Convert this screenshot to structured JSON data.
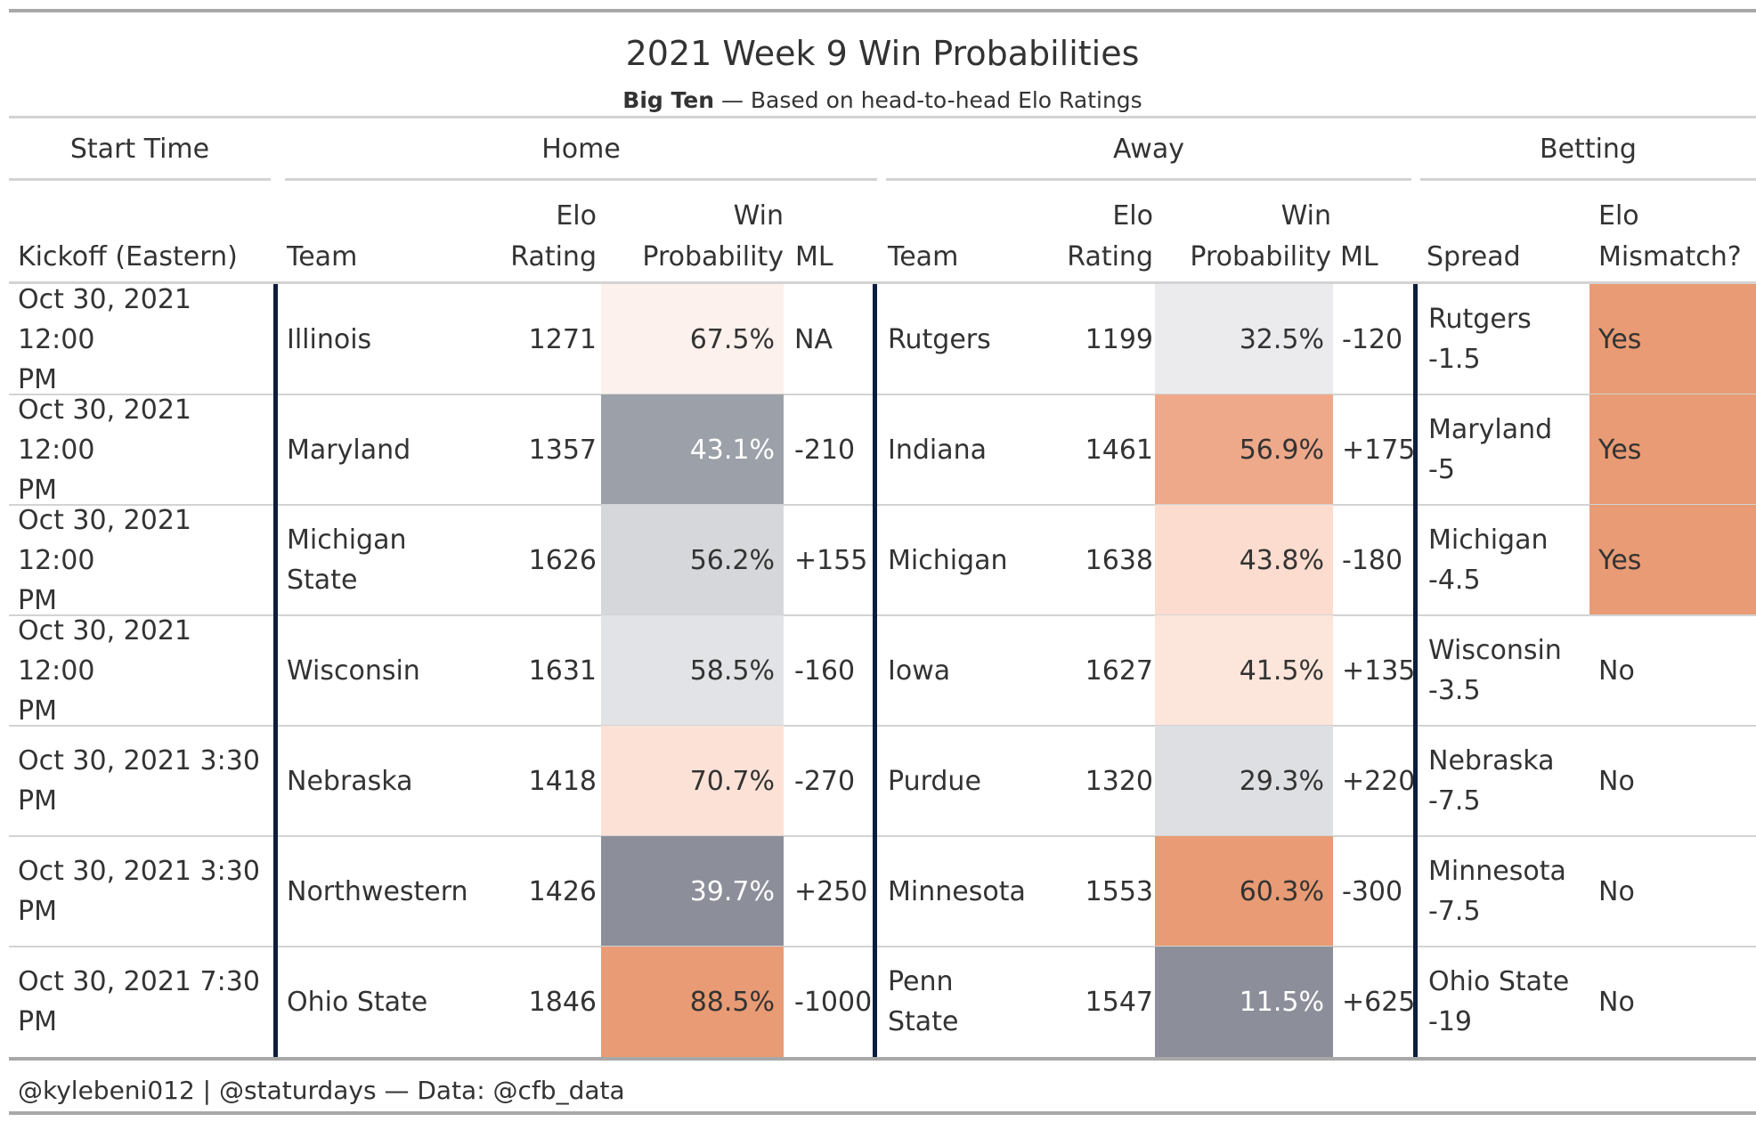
{
  "title": "2021 Week 9 Win Probabilities",
  "subtitle": {
    "bold": "Big Ten",
    "rest": " — Based on head-to-head Elo Ratings"
  },
  "spanners": {
    "start_time": "Start Time",
    "home": "Home",
    "away": "Away",
    "betting": "Betting"
  },
  "columns": {
    "kickoff": "Kickoff (Eastern)",
    "home_team": "Team",
    "home_elo": [
      "Elo",
      "Rating"
    ],
    "home_wp": [
      "Win",
      "Probability"
    ],
    "home_ml": "ML",
    "away_team": "Team",
    "away_elo": [
      "Elo",
      "Rating"
    ],
    "away_wp": [
      "Win",
      "Probability"
    ],
    "away_ml": "ML",
    "spread": "Spread",
    "mismatch": [
      "Elo",
      "Mismatch?"
    ]
  },
  "colors": {
    "cool_dark": "#8c8f99",
    "warm_dark": "#e89b74",
    "divider": "#0d1d3d",
    "mismatch_yes": "#e89b74"
  },
  "chart_data": {
    "type": "table",
    "rows": [
      {
        "kickoff": [
          "Oct 30, 2021 12:00",
          "PM"
        ],
        "home_team": [
          "Illinois"
        ],
        "home_elo": "1271",
        "home_wp": "67.5%",
        "home_ml": "NA",
        "away_team": "Rutgers",
        "away_elo": "1199",
        "away_wp": "32.5%",
        "away_ml": "-120",
        "spread": [
          "Rutgers",
          "-1.5"
        ],
        "mismatch": "Yes",
        "home_bg": "#fdf1ed",
        "home_fg": "#333333",
        "away_bg": "#ebebed",
        "away_fg": "#333333"
      },
      {
        "kickoff": [
          "Oct 30, 2021 12:00",
          "PM"
        ],
        "home_team": [
          "Maryland"
        ],
        "home_elo": "1357",
        "home_wp": "43.1%",
        "home_ml": "-210",
        "away_team": "Indiana",
        "away_elo": "1461",
        "away_wp": "56.9%",
        "away_ml": "+175",
        "spread": [
          "Maryland",
          "-5"
        ],
        "mismatch": "Yes",
        "home_bg": "#9ca0a8",
        "home_fg": "#ffffff",
        "away_bg": "#eda98a",
        "away_fg": "#333333"
      },
      {
        "kickoff": [
          "Oct 30, 2021 12:00",
          "PM"
        ],
        "home_team": [
          "Michigan",
          "State"
        ],
        "home_elo": "1626",
        "home_wp": "56.2%",
        "home_ml": "+155",
        "away_team": "Michigan",
        "away_elo": "1638",
        "away_wp": "43.8%",
        "away_ml": "-180",
        "spread": [
          "Michigan",
          "-4.5"
        ],
        "mismatch": "Yes",
        "home_bg": "#d6d7db",
        "home_fg": "#333333",
        "away_bg": "#fbdccf",
        "away_fg": "#333333"
      },
      {
        "kickoff": [
          "Oct 30, 2021 12:00",
          "PM"
        ],
        "home_team": [
          "Wisconsin"
        ],
        "home_elo": "1631",
        "home_wp": "58.5%",
        "home_ml": "-160",
        "away_team": "Iowa",
        "away_elo": "1627",
        "away_wp": "41.5%",
        "away_ml": "+135",
        "spread": [
          "Wisconsin",
          "-3.5"
        ],
        "mismatch": "No",
        "home_bg": "#e2e3e6",
        "home_fg": "#333333",
        "away_bg": "#fce5da",
        "away_fg": "#333333"
      },
      {
        "kickoff": [
          "Oct 30, 2021 3:30",
          "PM"
        ],
        "home_team": [
          "Nebraska"
        ],
        "home_elo": "1418",
        "home_wp": "70.7%",
        "home_ml": "-270",
        "away_team": "Purdue",
        "away_elo": "1320",
        "away_wp": "29.3%",
        "away_ml": "+220",
        "spread": [
          "Nebraska",
          "-7.5"
        ],
        "mismatch": "No",
        "home_bg": "#fce1d6",
        "home_fg": "#333333",
        "away_bg": "#dedfe3",
        "away_fg": "#333333"
      },
      {
        "kickoff": [
          "Oct 30, 2021 3:30",
          "PM"
        ],
        "home_team": [
          "Northwestern"
        ],
        "home_elo": "1426",
        "home_wp": "39.7%",
        "home_ml": "+250",
        "away_team": "Minnesota",
        "away_elo": "1553",
        "away_wp": "60.3%",
        "away_ml": "-300",
        "spread": [
          "Minnesota",
          "-7.5"
        ],
        "mismatch": "No",
        "home_bg": "#8c8f99",
        "home_fg": "#ffffff",
        "away_bg": "#e89b74",
        "away_fg": "#333333"
      },
      {
        "kickoff": [
          "Oct 30, 2021 7:30",
          "PM"
        ],
        "home_team": [
          "Ohio State"
        ],
        "home_elo": "1846",
        "home_wp": "88.5%",
        "home_ml": "-1000",
        "away_team": "Penn State",
        "away_elo": "1547",
        "away_wp": "11.5%",
        "away_ml": "+625",
        "spread": [
          "Ohio State",
          "-19"
        ],
        "mismatch": "No",
        "home_bg": "#e89b74",
        "home_fg": "#333333",
        "away_bg": "#8c8f99",
        "away_fg": "#ffffff"
      }
    ]
  },
  "footer": "@kylebeni012 | @staturdays — Data: @cfb_data"
}
